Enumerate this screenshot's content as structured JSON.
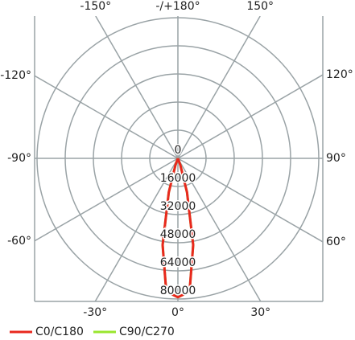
{
  "chart_data": {
    "type": "polar",
    "rlim": [
      0,
      80000
    ],
    "rticks": [
      0,
      16000,
      32000,
      48000,
      64000,
      80000
    ],
    "angle_ticks": [
      {
        "value": -150,
        "label": "-150°"
      },
      {
        "value": 180,
        "label": "-/+180°"
      },
      {
        "value": 150,
        "label": "150°"
      },
      {
        "value": -120,
        "label": "-120°"
      },
      {
        "value": 120,
        "label": "120°"
      },
      {
        "value": -90,
        "label": "-90°"
      },
      {
        "value": 90,
        "label": "90°"
      },
      {
        "value": -60,
        "label": "-60°"
      },
      {
        "value": 60,
        "label": "60°"
      },
      {
        "value": -30,
        "label": "-30°"
      },
      {
        "value": 0,
        "label": "0°"
      },
      {
        "value": 30,
        "label": "30°"
      }
    ],
    "angles": [
      -90,
      -30,
      -20,
      -15,
      -10,
      -5,
      0,
      5,
      10,
      15,
      20,
      30,
      90
    ],
    "series": [
      {
        "name": "C90/C270",
        "color": "#99e62e",
        "values": [
          0,
          0,
          4000,
          20000,
          50000,
          76000,
          79000,
          76000,
          50000,
          20000,
          4000,
          0,
          0
        ]
      },
      {
        "name": "C0/C180",
        "color": "#e8281e",
        "values": [
          0,
          0,
          4000,
          20000,
          50000,
          76000,
          79000,
          76000,
          50000,
          20000,
          4000,
          0,
          0
        ]
      }
    ],
    "grid": true
  }
}
